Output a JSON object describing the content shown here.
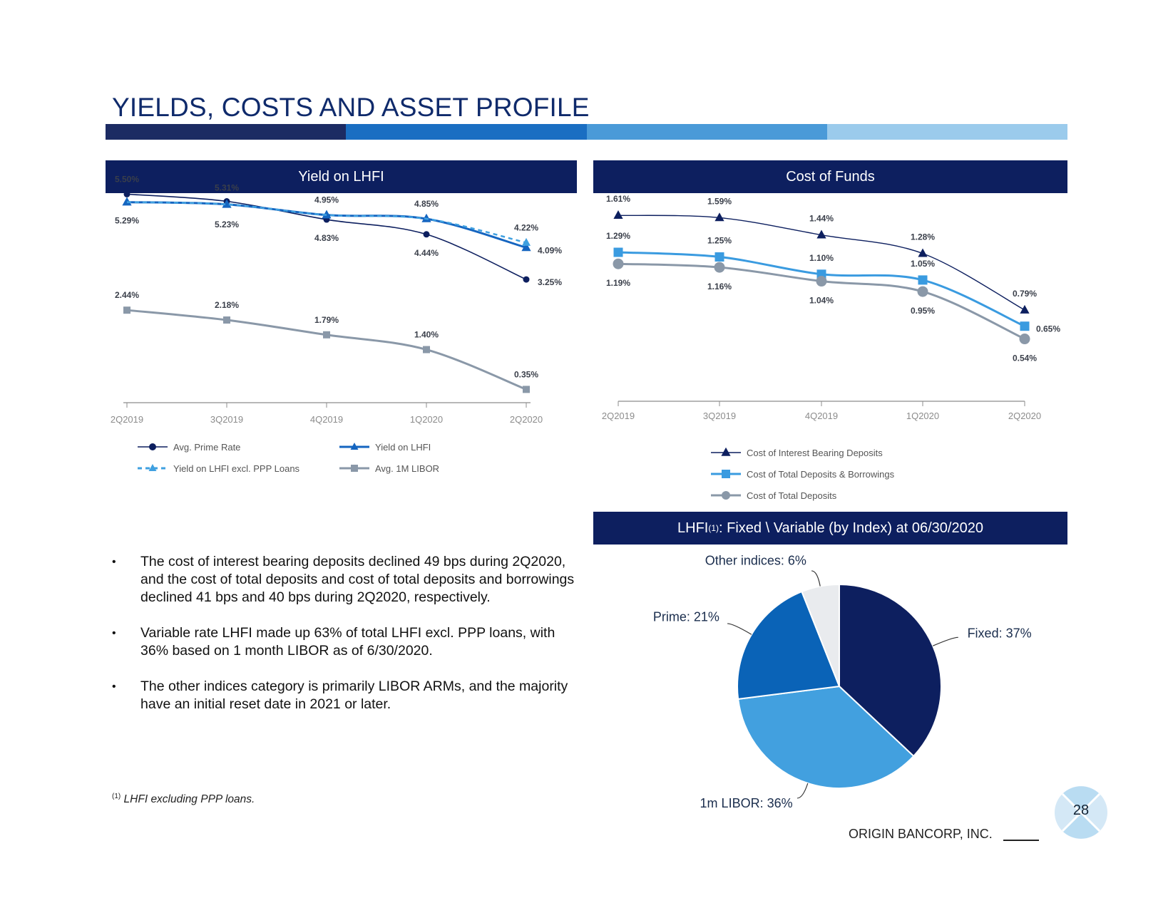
{
  "page": {
    "title": "YIELDS, COSTS AND ASSET PROFILE",
    "title_bar_colors": [
      "#1c2b63",
      "#1a6ec2",
      "#4a9ad8",
      "#9bcbec"
    ],
    "footnote_marker": "(1)",
    "footnote_text": "LHFI excluding PPP loans.",
    "company": "ORIGIN BANCORP, INC.",
    "page_number": "28"
  },
  "bullets": [
    "The cost of interest bearing deposits declined 49 bps during 2Q2020, and the cost of total deposits and cost of total deposits and borrowings declined 41 bps and 40 bps during 2Q2020, respectively.",
    "Variable rate LHFI made up 63% of total LHFI excl. PPP loans, with 36% based on 1 month LIBOR as of 6/30/2020.",
    "The other indices category is primarily LIBOR ARMs, and the majority have an initial reset date in 2021 or later."
  ],
  "panels": {
    "yield": {
      "title": "Yield on LHFI"
    },
    "cost": {
      "title": "Cost of Funds"
    },
    "pie": {
      "title_pre": "LHFI",
      "title_sup": "(1)",
      "title_post": ":  Fixed \\ Variable (by Index) at 06/30/2020"
    }
  },
  "chart_data": [
    {
      "id": "yield",
      "type": "line",
      "title": "Yield on LHFI",
      "categories": [
        "2Q2019",
        "3Q2019",
        "4Q2019",
        "1Q2020",
        "2Q2020"
      ],
      "ylim": [
        0,
        6
      ],
      "series": [
        {
          "name": "Avg. Prime Rate",
          "values": [
            5.5,
            5.31,
            4.83,
            4.44,
            3.25
          ],
          "labels": [
            "5.50%",
            "5.31%",
            "4.83%",
            "4.44%",
            "3.25%"
          ],
          "color": "#0d1f5f",
          "marker": "circle",
          "dash": false
        },
        {
          "name": "Yield on LHFI",
          "values": [
            5.29,
            5.23,
            4.95,
            4.85,
            4.09
          ],
          "labels": [
            "5.29%",
            "5.23%",
            "4.95%",
            "4.85%",
            "4.09%"
          ],
          "color": "#1565c0",
          "marker": "triangle",
          "dash": false
        },
        {
          "name": "Yield on LHFI excl. PPP Loans",
          "values": [
            5.29,
            5.23,
            4.95,
            4.85,
            4.22
          ],
          "labels": [
            "",
            "",
            "",
            "",
            "4.22%"
          ],
          "color": "#3fa0e0",
          "marker": "triangle",
          "dash": true
        },
        {
          "name": "Avg. 1M LIBOR",
          "values": [
            2.44,
            2.18,
            1.79,
            1.4,
            0.35
          ],
          "labels": [
            "2.44%",
            "2.18%",
            "1.79%",
            "1.40%",
            "0.35%"
          ],
          "color": "#8a98a8",
          "marker": "square",
          "dash": false
        }
      ]
    },
    {
      "id": "cost",
      "type": "line",
      "title": "Cost of Funds",
      "categories": [
        "2Q2019",
        "3Q2019",
        "4Q2019",
        "1Q2020",
        "2Q2020"
      ],
      "ylim": [
        0,
        1.8
      ],
      "series": [
        {
          "name": "Cost of Interest Bearing Deposits",
          "values": [
            1.61,
            1.59,
            1.44,
            1.28,
            0.79
          ],
          "labels": [
            "1.61%",
            "1.59%",
            "1.44%",
            "1.28%",
            "0.79%"
          ],
          "color": "#0d1f5f",
          "marker": "triangle"
        },
        {
          "name": "Cost of Total Deposits & Borrowings",
          "values": [
            1.29,
            1.25,
            1.1,
            1.05,
            0.65
          ],
          "labels": [
            "1.29%",
            "1.25%",
            "1.10%",
            "1.05%",
            "0.65%"
          ],
          "color": "#3a9be0",
          "marker": "square"
        },
        {
          "name": "Cost of Total Deposits",
          "values": [
            1.19,
            1.16,
            1.04,
            0.95,
            0.54
          ],
          "labels": [
            "1.19%",
            "1.16%",
            "1.04%",
            "0.95%",
            "0.54%"
          ],
          "color": "#8a98a8",
          "marker": "circle"
        }
      ]
    },
    {
      "id": "pie",
      "type": "pie",
      "title": "LHFI(1): Fixed \\ Variable (by Index) at 06/30/2020",
      "slices": [
        {
          "label": "Fixed: 37%",
          "value": 37,
          "color": "#0d1f5f"
        },
        {
          "label": "1m LIBOR: 36%",
          "value": 36,
          "color": "#42a0df"
        },
        {
          "label": "Prime: 21%",
          "value": 21,
          "color": "#0a63b7"
        },
        {
          "label": "Other indices: 6%",
          "value": 6,
          "color": "#e9ebee"
        }
      ]
    }
  ]
}
